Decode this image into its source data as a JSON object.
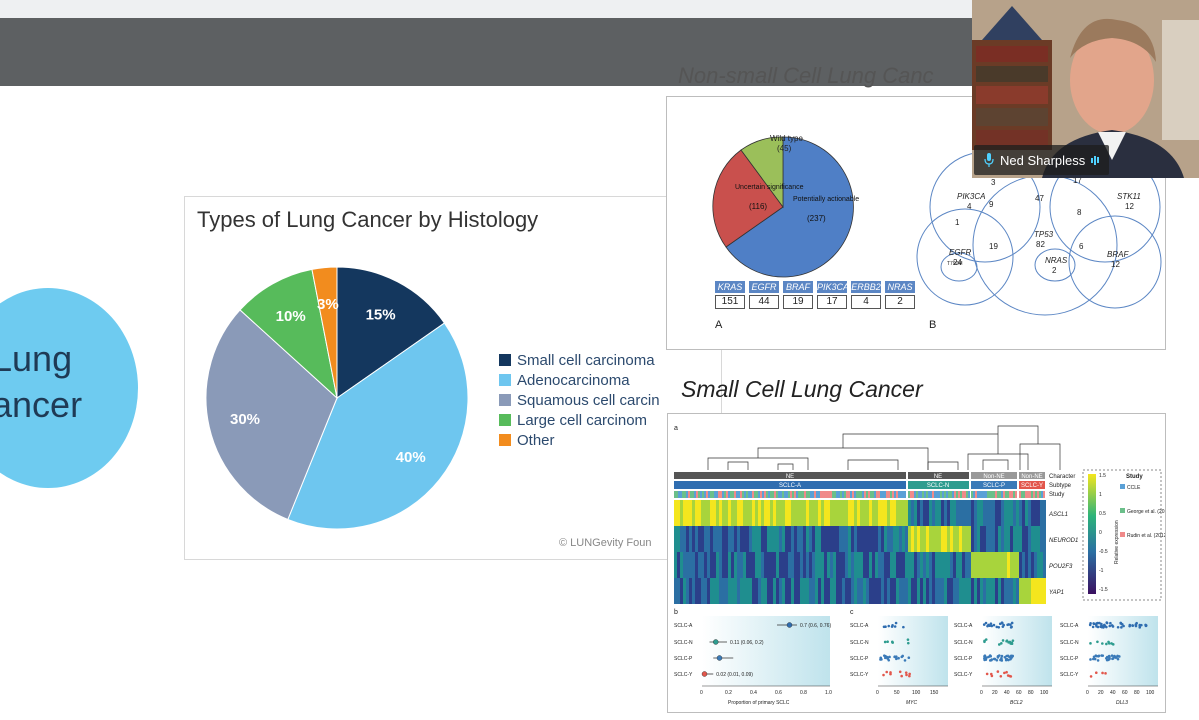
{
  "slide": {
    "circle_text_line1": "Lung",
    "circle_text_line2": "ancer"
  },
  "histology_chart": {
    "title": "Types of Lung Cancer by Histology",
    "credit": "© LUNGevity Foun",
    "legend": [
      {
        "label": "Small cell carcinoma",
        "color": "#14375e"
      },
      {
        "label": "Adenocarcinoma",
        "color": "#6ec6ef"
      },
      {
        "label": "Squamous cell carcin",
        "color": "#8a9ab8"
      },
      {
        "label": "Large cell carcinom",
        "color": "#57bb5b"
      },
      {
        "label": "Other",
        "color": "#f28c1e"
      }
    ]
  },
  "chart_data": {
    "type": "pie",
    "title": "Types of Lung Cancer by Histology",
    "categories": [
      "Small cell carcinoma",
      "Adenocarcinoma",
      "Squamous cell carcin",
      "Large cell carcinom",
      "Other"
    ],
    "values": [
      15,
      40,
      30,
      10,
      3
    ],
    "labels": [
      "15%",
      "40%",
      "30%",
      "10%",
      "3%"
    ],
    "colors": [
      "#14375e",
      "#6ec6ef",
      "#8a9ab8",
      "#57bb5b",
      "#f28c1e"
    ],
    "legend_position": "right"
  },
  "nsclc": {
    "heading": "Non-small Cell Lung Canc",
    "pie": {
      "wild_type": "Wild type",
      "wild_type_n": "(45)",
      "uncertain": "Uncertain significance",
      "uncertain_n": "(116)",
      "actionable": "Potentially actionable",
      "actionable_n": "(237)"
    },
    "genes": [
      {
        "name": "KRAS",
        "count": "151"
      },
      {
        "name": "EGFR",
        "count": "44"
      },
      {
        "name": "BRAF",
        "count": "19"
      },
      {
        "name": "PIK3CA",
        "count": "17"
      },
      {
        "name": "ERBB2",
        "count": "4"
      },
      {
        "name": "NRAS",
        "count": "2"
      }
    ],
    "panel_a": "A",
    "panel_b": "B",
    "venn": {
      "pik3ca": "PIK3CA",
      "pik3ca_n": "4",
      "stk11": "STK11",
      "stk11_n": "12",
      "tp53": "TP53",
      "tp53_n": "82",
      "egfr": "EGFR",
      "egfr_n": "24",
      "nras": "NRAS",
      "nras_n": "2",
      "braf": "BRAF",
      "braf_n": "12",
      "center": "47",
      "n19": "19",
      "n8": "8",
      "n6": "6",
      "n9": "9",
      "n1": "1",
      "n17": "17",
      "n3": "3",
      "t790m": "T790M"
    }
  },
  "sclc": {
    "heading": "Small Cell Lung Cancer",
    "panel_a": "a",
    "panel_b": "b",
    "panel_c": "c",
    "bars": {
      "character": "Character",
      "subtype": "Subtype",
      "study": "Study",
      "ne1": "NE",
      "ne2": "NE",
      "nonne1": "Non-NE",
      "nonne2": "Non-NE",
      "sclca": "SCLC-A",
      "sclcn": "SCLC-N",
      "sclcp": "SCLC-P",
      "sclcy": "SCLC-Y"
    },
    "genes": [
      "ASCL1",
      "NEUROD1",
      "POU2F3",
      "YAP1"
    ],
    "colorbar_ticks": [
      "1.5",
      "1",
      "0.5",
      "0",
      "-0.5",
      "-1",
      "-1.5"
    ],
    "colorbar_label": "Relative expression",
    "study_legend_title": "Study",
    "study_legend": [
      {
        "label": "CCLE",
        "color": "#5aa0d6"
      },
      {
        "label": "George et al. (2015)",
        "color": "#6bbf8a"
      },
      {
        "label": "Rudin et al. (2012)",
        "color": "#f08a8a"
      }
    ],
    "panel_b_rows": [
      "SCLC-A",
      "SCLC-N",
      "SCLC-P",
      "SCLC-Y"
    ],
    "panel_b_values": [
      "0.7 (0.6, 0.76)",
      "0.11 (0.06, 0.2)",
      "",
      "0.02 (0.01, 0.09)"
    ],
    "panel_b_ticks": [
      "0",
      "0.2",
      "0.4",
      "0.6",
      "0.8",
      "1.0"
    ],
    "panel_b_xlabel": "Proportion of primary SCLC",
    "panel_c_rows": [
      "SCLC-A",
      "SCLC-N",
      "SCLC-P",
      "SCLC-Y"
    ],
    "myc_ticks": [
      "0",
      "50",
      "100",
      "150"
    ],
    "bcl2_ticks": [
      "0",
      "20",
      "40",
      "60",
      "80",
      "100"
    ],
    "dll3_ticks": [
      "0",
      "20",
      "40",
      "60",
      "80",
      "100"
    ],
    "myc_label": "MYC",
    "bcl2_label": "BCL2",
    "dll3_label": "DLL3"
  },
  "video": {
    "participant_name": "Ned Sharpless",
    "mic_icon": "microphone-icon",
    "audio_icon": "audio-level-icon"
  }
}
